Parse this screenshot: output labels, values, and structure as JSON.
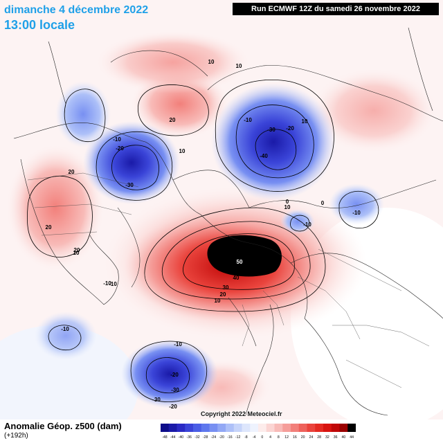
{
  "header": {
    "date": "dimanche 4 décembre 2022",
    "time": "13:00 locale",
    "run": "Run ECMWF 12Z du samedi 26 novembre 2022"
  },
  "footer": {
    "title": "Anomalie Géop. z500 (dam)",
    "lead": "(+192h)",
    "copyright": "Copyright 2022 Meteociel.fr"
  },
  "legend": {
    "ticks": [
      "-48",
      "-44",
      "-40",
      "-36",
      "-32",
      "-28",
      "-24",
      "-20",
      "-16",
      "-12",
      "-8",
      "-4",
      "0",
      "4",
      "8",
      "12",
      "16",
      "20",
      "24",
      "28",
      "32",
      "36",
      "40",
      "44"
    ],
    "colors": [
      "#0d0d8a",
      "#1a1aa8",
      "#2a2ac4",
      "#3a44d8",
      "#4a5ee6",
      "#5e78ee",
      "#7890f2",
      "#92a8f5",
      "#adc0f8",
      "#c6d4fa",
      "#dde6fc",
      "#eef3fe",
      "#fdeceb",
      "#fbd5d3",
      "#f8bbb8",
      "#f59e9a",
      "#f2807b",
      "#ee625c",
      "#ea443d",
      "#e42a22",
      "#d81410",
      "#c00808",
      "#9a0000",
      "#000000"
    ],
    "color_range": [
      "#1a1aa8",
      "#c00808"
    ]
  },
  "map": {
    "high_color": "#ee3a32",
    "low_color": "#3a44d8",
    "contour_labels": [
      "50",
      "40",
      "30",
      "20",
      "10",
      "0",
      "-10",
      "-20",
      "-30",
      "-40",
      "-10",
      "-20",
      "-30",
      "-10",
      "-20",
      "-30",
      "10",
      "10",
      "10",
      "20",
      "10",
      "10",
      "20",
      "20",
      "20",
      "10",
      "-10",
      "0",
      "-10",
      "-10",
      "-10",
      "-20",
      "-30",
      "-10"
    ]
  }
}
